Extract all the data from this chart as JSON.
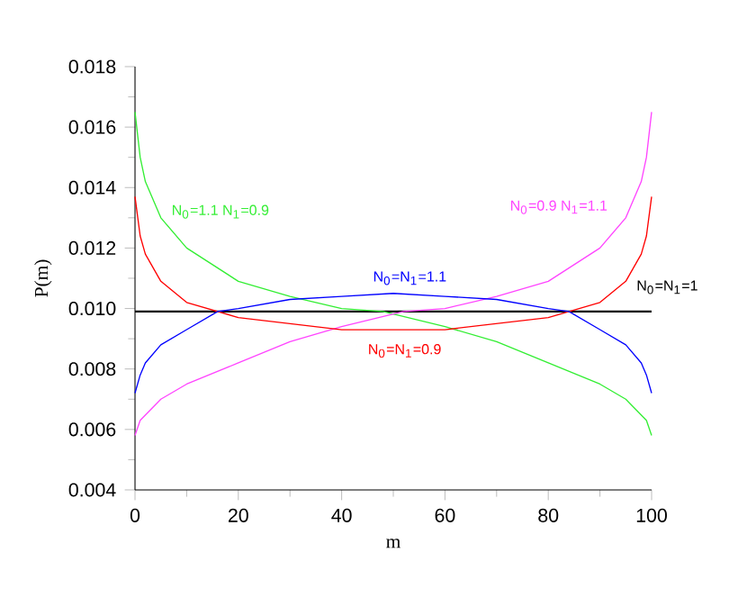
{
  "chart_data": {
    "type": "line",
    "xlabel": "m",
    "ylabel": "P(m)",
    "xlim": [
      0,
      100
    ],
    "ylim": [
      0.004,
      0.018
    ],
    "xticks": [
      0,
      20,
      40,
      60,
      80,
      100
    ],
    "yticks": [
      {
        "value": 0.004,
        "label": "0.004"
      },
      {
        "value": 0.006,
        "label": "0.006"
      },
      {
        "value": 0.008,
        "label": "0.008"
      },
      {
        "value": 0.01,
        "label": "0.010"
      },
      {
        "value": 0.012,
        "label": "0.012"
      },
      {
        "value": 0.014,
        "label": "0.014"
      },
      {
        "value": 0.016,
        "label": "0.016"
      },
      {
        "value": 0.018,
        "label": "0.018"
      }
    ],
    "grid": false,
    "marker": "none",
    "line_style": "solid",
    "series": [
      {
        "color": "#000000",
        "x": [
          0,
          100
        ],
        "values": [
          0.0099,
          0.0099
        ]
      },
      {
        "color": "#33ee33",
        "x": [
          0,
          1,
          2,
          5,
          10,
          20,
          30,
          40,
          48,
          60,
          70,
          80,
          90,
          95,
          99,
          100
        ],
        "values": [
          0.0165,
          0.015,
          0.0142,
          0.013,
          0.012,
          0.0109,
          0.0104,
          0.01,
          0.0099,
          0.0094,
          0.0089,
          0.0082,
          0.0075,
          0.007,
          0.0063,
          0.0058
        ]
      },
      {
        "color": "#ff44ff",
        "x": [
          0,
          1,
          5,
          10,
          20,
          30,
          40,
          52,
          60,
          70,
          80,
          90,
          95,
          98,
          99,
          100
        ],
        "values": [
          0.0058,
          0.0063,
          0.007,
          0.0075,
          0.0082,
          0.0089,
          0.0094,
          0.0099,
          0.01,
          0.0104,
          0.0109,
          0.012,
          0.013,
          0.0142,
          0.015,
          0.0165
        ]
      },
      {
        "color": "#ff0000",
        "x": [
          0,
          1,
          2,
          5,
          10,
          16,
          20,
          30,
          40,
          50,
          60,
          70,
          80,
          84,
          90,
          95,
          98,
          99,
          100
        ],
        "values": [
          0.0137,
          0.0124,
          0.0118,
          0.0109,
          0.0102,
          0.0099,
          0.0097,
          0.0095,
          0.0093,
          0.0093,
          0.0093,
          0.0095,
          0.0097,
          0.0099,
          0.0102,
          0.0109,
          0.0118,
          0.0124,
          0.0137
        ]
      },
      {
        "color": "#0000ff",
        "x": [
          0,
          1,
          2,
          5,
          10,
          16,
          20,
          30,
          40,
          50,
          60,
          70,
          80,
          84,
          90,
          95,
          98,
          99,
          100
        ],
        "values": [
          0.0072,
          0.0078,
          0.0082,
          0.0088,
          0.0093,
          0.0099,
          0.01,
          0.0103,
          0.0104,
          0.0105,
          0.0104,
          0.0103,
          0.01,
          0.0099,
          0.0093,
          0.0088,
          0.0082,
          0.0078,
          0.0072
        ]
      }
    ],
    "annotations": [
      "N$_{0}$=1.1  N$_{1}$=0.9",
      "N$_{0}$=0.9  N$_{1}$=1.1",
      "N$_{0}$=N$_{1}$=1.1",
      "N$_{0}$=N$_{1}$=1",
      "N$_{0}$=N$_{1}$=0.9"
    ]
  }
}
